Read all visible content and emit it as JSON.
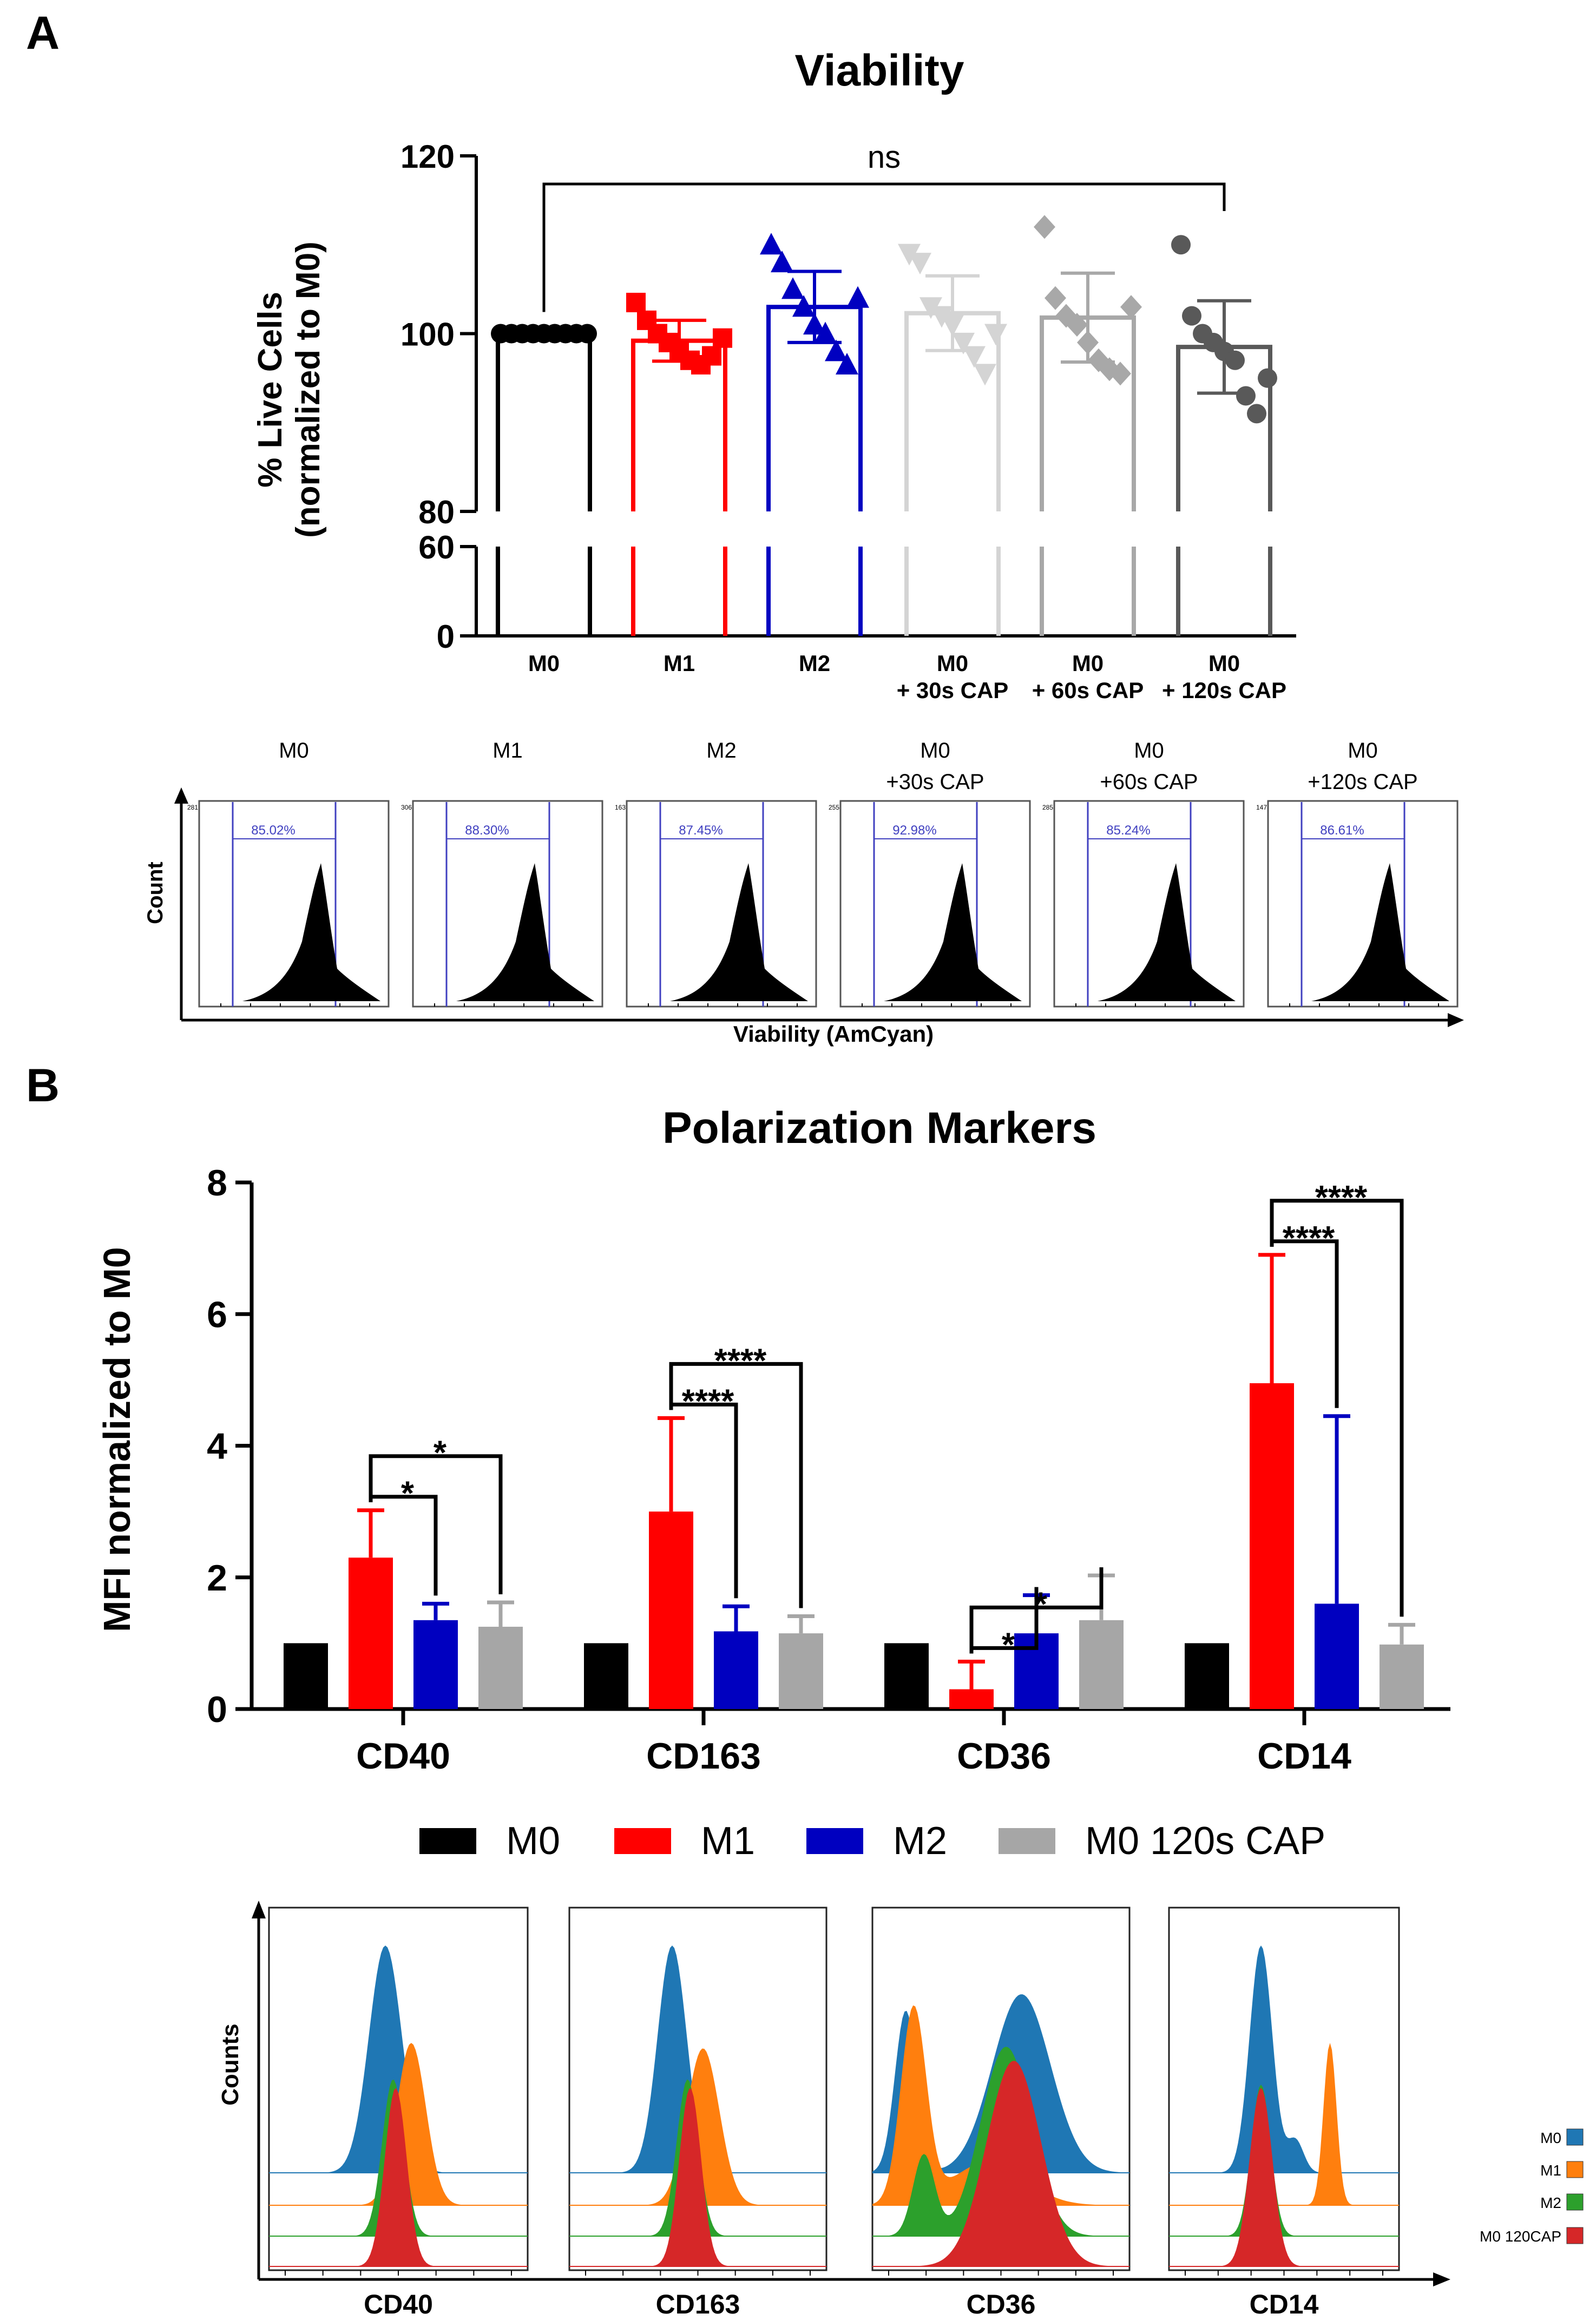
{
  "panels": {
    "a_letter": "A",
    "b_letter": "B"
  },
  "colors": {
    "M0": "#000000",
    "M1": "#ff0000",
    "M2": "#0000c0",
    "M0_30": "#d4d4d4",
    "M0_60": "#a8a8a8",
    "M0_120": "#595959",
    "M0_120_b": "#a6a6a6",
    "flow_M0": "#1f77b4",
    "flow_M1": "#ff7f0e",
    "flow_M2": "#2ca02c",
    "flow_M0_120": "#d62728",
    "gate": "#4040c0"
  },
  "chart_data": [
    {
      "id": "viability",
      "type": "bar",
      "title": "Viability",
      "ylabel_line1": "% Live Cells",
      "ylabel_line2": "(normalized to M0)",
      "ylim_upper": [
        80,
        120
      ],
      "ylim_lower": [
        0,
        60
      ],
      "yticks_upper": [
        "80",
        "100",
        "120"
      ],
      "yticks_lower": [
        "0",
        "60"
      ],
      "categories": [
        {
          "line1": "M0",
          "line2": ""
        },
        {
          "line1": "M1",
          "line2": ""
        },
        {
          "line1": "M2",
          "line2": ""
        },
        {
          "line1": "M0",
          "line2": "+ 30s CAP"
        },
        {
          "line1": "M0",
          "line2": "+ 60s CAP"
        },
        {
          "line1": "M0",
          "line2": "+ 120s CAP"
        }
      ],
      "values": [
        100,
        99.2,
        103,
        102.3,
        101.8,
        98.5
      ],
      "errors": [
        0.3,
        2.3,
        4.0,
        4.2,
        5.0,
        5.2
      ],
      "points": [
        [
          100,
          100,
          100,
          100,
          100,
          100,
          100,
          100,
          100
        ],
        [
          103.5,
          101.5,
          100,
          99,
          98,
          97,
          96.5,
          97.5,
          99.5
        ],
        [
          110,
          108,
          105,
          103,
          101,
          100,
          98,
          96.5,
          104
        ],
        [
          109,
          108,
          103,
          102,
          101,
          99,
          97.5,
          95.5,
          100
        ],
        [
          112,
          104,
          102,
          101,
          99,
          97,
          96,
          95.5,
          103
        ],
        [
          110,
          102,
          100,
          99,
          98,
          97,
          93,
          91,
          95
        ]
      ],
      "markers": [
        "circle",
        "square",
        "triangle",
        "triangle-down",
        "diamond",
        "circle"
      ],
      "significance": {
        "from": 0,
        "to": 5,
        "label": "ns"
      }
    },
    {
      "id": "polarization",
      "type": "bar",
      "title": "Polarization Markers",
      "ylabel": "MFI normalized to M0",
      "ylim": [
        0,
        8
      ],
      "yticks": [
        "0",
        "2",
        "4",
        "6",
        "8"
      ],
      "categories": [
        "CD40",
        "CD163",
        "CD36",
        "CD14"
      ],
      "series": [
        {
          "name": "M0",
          "values": [
            1.0,
            1.0,
            1.0,
            1.0
          ],
          "errors": [
            0,
            0,
            0,
            0
          ]
        },
        {
          "name": "M1",
          "values": [
            2.3,
            3.0,
            0.3,
            4.95
          ],
          "errors": [
            0.72,
            1.42,
            0.42,
            1.95
          ]
        },
        {
          "name": "M2",
          "values": [
            1.35,
            1.18,
            1.15,
            1.6
          ],
          "errors": [
            0.25,
            0.38,
            0.58,
            2.85
          ]
        },
        {
          "name": "M0 120s CAP",
          "values": [
            1.25,
            1.15,
            1.35,
            0.98
          ],
          "errors": [
            0.37,
            0.26,
            0.68,
            0.3
          ]
        }
      ],
      "significance": [
        {
          "group": 0,
          "pairs": [
            {
              "to": 2,
              "label": "*"
            },
            {
              "to": 3,
              "label": "*"
            }
          ]
        },
        {
          "group": 1,
          "pairs": [
            {
              "to": 2,
              "label": "****"
            },
            {
              "to": 3,
              "label": "****"
            }
          ]
        },
        {
          "group": 2,
          "pairs": [
            {
              "to": 2,
              "label": "*"
            },
            {
              "to": 3,
              "label": "*"
            }
          ]
        },
        {
          "group": 3,
          "pairs": [
            {
              "to": 2,
              "label": "****"
            },
            {
              "to": 3,
              "label": "****"
            }
          ]
        }
      ]
    }
  ],
  "viability_histograms": {
    "ylabel": "Count",
    "xlabel": "Viability (AmCyan)",
    "panels": [
      {
        "title1": "M0",
        "title2": "",
        "gate_pct": "85.02%",
        "ymax": "281"
      },
      {
        "title1": "M1",
        "title2": "",
        "gate_pct": "88.30%",
        "ymax": "306"
      },
      {
        "title1": "M2",
        "title2": "",
        "gate_pct": "87.45%",
        "ymax": "163"
      },
      {
        "title1": "M0",
        "title2": "+30s CAP",
        "gate_pct": "92.98%",
        "ymax": "255"
      },
      {
        "title1": "M0",
        "title2": "+60s CAP",
        "gate_pct": "85.24%",
        "ymax": "285"
      },
      {
        "title1": "M0",
        "title2": "+120s CAP",
        "gate_pct": "86.61%",
        "ymax": "147"
      }
    ]
  },
  "marker_histograms": {
    "ylabel": "Counts",
    "panels": [
      {
        "label": "CD40"
      },
      {
        "label": "CD163"
      },
      {
        "label": "CD36"
      },
      {
        "label": "CD14"
      }
    ],
    "legend": [
      "M0",
      "M1",
      "M2",
      "M0 120CAP"
    ]
  }
}
